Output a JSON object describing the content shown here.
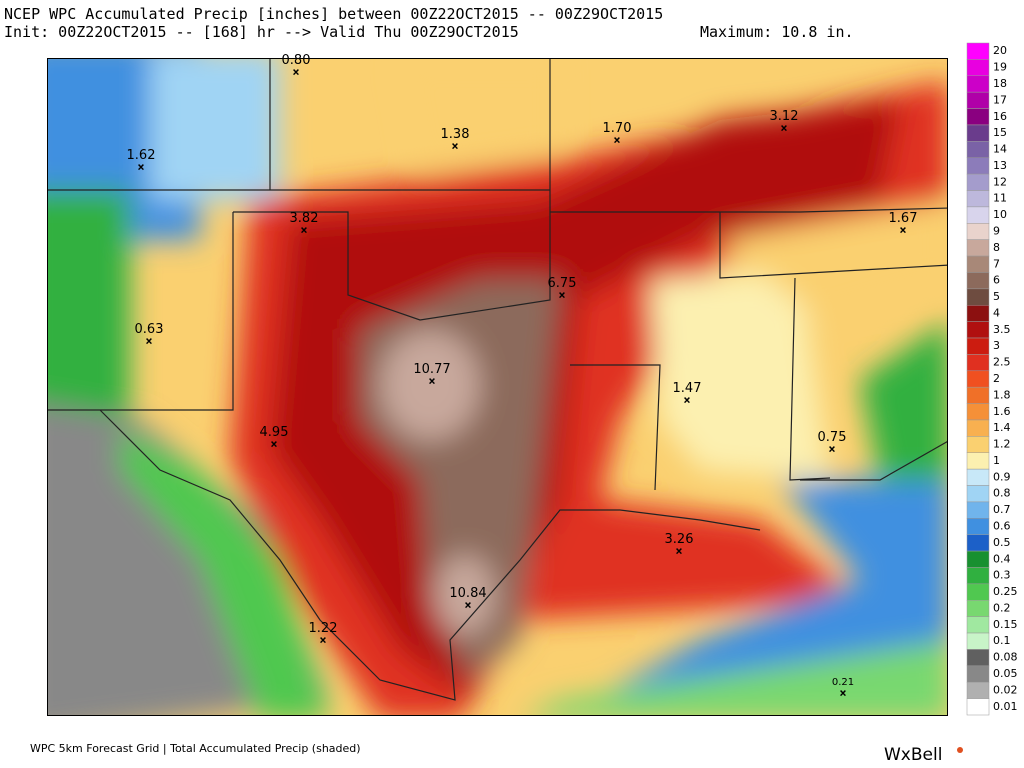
{
  "header": {
    "title": "NCEP WPC Accumulated Precip [inches] between 00Z22OCT2015 -- 00Z29OCT2015",
    "init": "Init: 00Z22OCT2015 -- [168] hr --> Valid Thu 00Z29OCT2015",
    "maximum": "Maximum:  10.8 in."
  },
  "map": {
    "points": [
      {
        "label": "0.80"
      },
      {
        "label": "1.62"
      },
      {
        "label": "1.38"
      },
      {
        "label": "1.70"
      },
      {
        "label": "3.12"
      },
      {
        "label": "3.82"
      },
      {
        "label": "6.75"
      },
      {
        "label": "1.67"
      },
      {
        "label": "0.63"
      },
      {
        "label": "10.77"
      },
      {
        "label": "1.47"
      },
      {
        "label": "4.95"
      },
      {
        "label": "0.75"
      },
      {
        "label": "3.26"
      },
      {
        "label": "10.84"
      },
      {
        "label": "1.22"
      },
      {
        "label": "0.21"
      }
    ]
  },
  "legend": {
    "labels": [
      "20",
      "19",
      "18",
      "17",
      "16",
      "15",
      "14",
      "13",
      "12",
      "11",
      "10",
      "9",
      "8",
      "7",
      "6",
      "5",
      "4",
      "3.5",
      "3",
      "2.5",
      "2",
      "1.8",
      "1.6",
      "1.4",
      "1.2",
      "1",
      "0.9",
      "0.8",
      "0.7",
      "0.6",
      "0.5",
      "0.4",
      "0.3",
      "0.25",
      "0.2",
      "0.15",
      "0.1",
      "0.08",
      "0.05",
      "0.02",
      "0.01"
    ]
  },
  "footer": {
    "note": "WPC 5km Forecast Grid | Total Accumulated Precip (shaded)",
    "brand": "WxBell"
  }
}
